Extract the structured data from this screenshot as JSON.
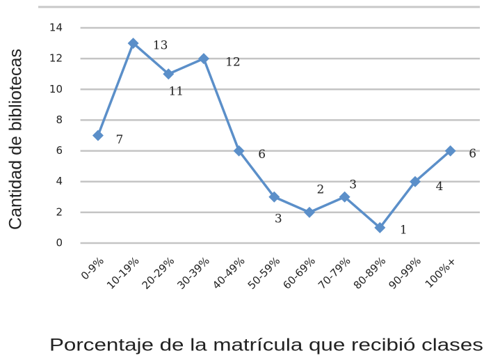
{
  "chart_data": {
    "type": "line",
    "y_label": "Cantidad de bibliotecas",
    "x_label": "Porcentaje de la matrícula que recibió clases",
    "categories": [
      "0-9%",
      "10-19%",
      "20-29%",
      "30-39%",
      "40-49%",
      "50-59%",
      "60-69%",
      "70-79%",
      "80-89%",
      "90-99%",
      "100%+"
    ],
    "series": [
      {
        "name": "Bibliotecas",
        "color": "#5b8fc9",
        "values": [
          7,
          13,
          11,
          12,
          6,
          3,
          2,
          3,
          1,
          4,
          6
        ]
      }
    ],
    "ylim": [
      0,
      14
    ],
    "yticks": [
      0,
      2,
      4,
      6,
      8,
      10,
      12,
      14
    ],
    "grid": true
  }
}
